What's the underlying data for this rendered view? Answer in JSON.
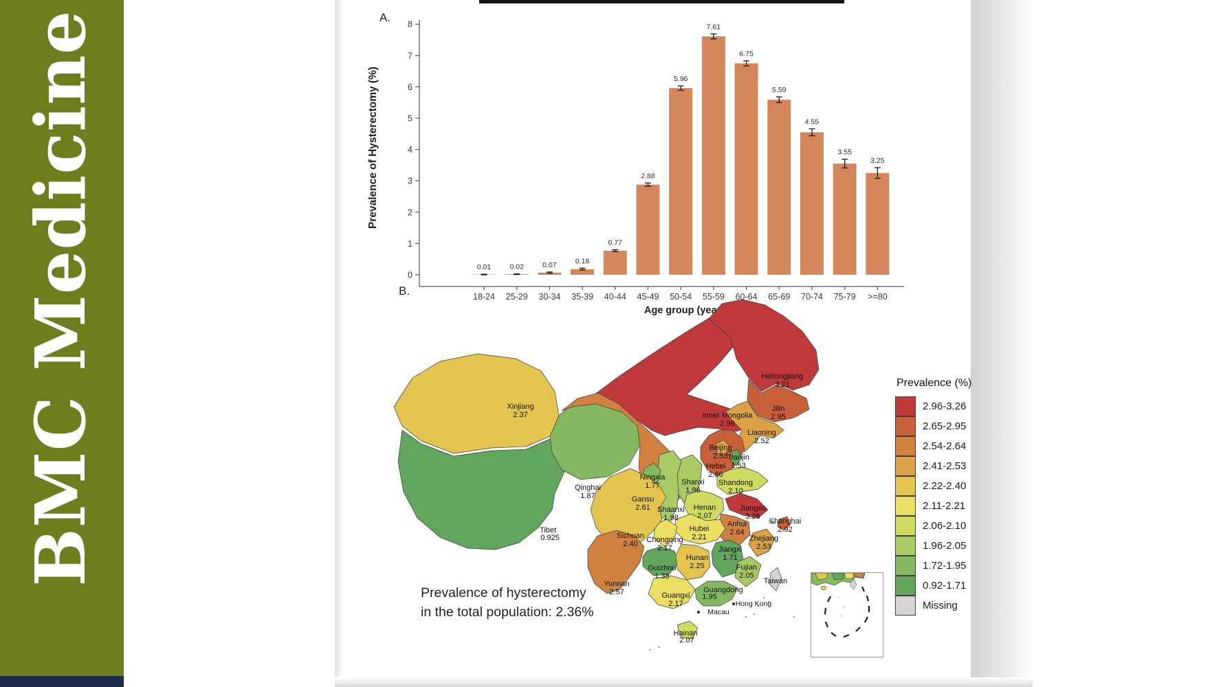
{
  "sidebar": {
    "journal_title": "BMC Medicine",
    "bg_color": "#6F7D1F",
    "footer_color": "#1C2B4A"
  },
  "figure": {
    "panelA": {
      "label": "A.",
      "chart_data": {
        "type": "bar",
        "categories": [
          "18-24",
          "25-29",
          "30-34",
          "35-39",
          "40-44",
          "45-49",
          "50-54",
          "55-59",
          "60-64",
          "65-69",
          "70-74",
          "75-79",
          ">=80"
        ],
        "values": [
          0.01,
          0.02,
          0.07,
          0.18,
          0.77,
          2.88,
          5.96,
          7.61,
          6.75,
          5.59,
          4.55,
          3.55,
          3.25
        ],
        "value_labels": [
          "0.01",
          "0.02",
          "0.07",
          "0.18",
          "0.77",
          "2.88",
          "5.96",
          "7.61",
          "6.75",
          "5.59",
          "4.55",
          "3.55",
          "3.25"
        ],
        "errors": [
          0.01,
          0.01,
          0.02,
          0.03,
          0.03,
          0.05,
          0.07,
          0.08,
          0.08,
          0.09,
          0.11,
          0.14,
          0.17
        ],
        "title": "",
        "xlabel": "Age group (year)",
        "ylabel": "Prevalence of Hysterectomy (%)",
        "ylim": [
          0,
          8
        ],
        "yticks": [
          0,
          1,
          2,
          3,
          4,
          5,
          6,
          7,
          8
        ],
        "grid": false,
        "error_bars": true,
        "bar_color": "#D5875C",
        "error_color": "#1A1A1A"
      }
    },
    "panelB": {
      "label": "B.",
      "annotation": {
        "line1": "Prevalence of hysterectomy",
        "line2": "in the total population: 2.36%"
      },
      "legend": {
        "title": "Prevalence (%)",
        "items": [
          {
            "label": "2.96-3.26",
            "color": "#C03A3C"
          },
          {
            "label": "2.65-2.95",
            "color": "#C75F38"
          },
          {
            "label": "2.54-2.64",
            "color": "#D0803F"
          },
          {
            "label": "2.41-2.53",
            "color": "#DCA246"
          },
          {
            "label": "2.22-2.40",
            "color": "#E3C44F"
          },
          {
            "label": "2.11-2.21",
            "color": "#EADF63"
          },
          {
            "label": "2.06-2.10",
            "color": "#CEDB60"
          },
          {
            "label": "1.96-2.05",
            "color": "#A8C963"
          },
          {
            "label": "1.72-1.95",
            "color": "#84B961"
          },
          {
            "label": "0.92-1.71",
            "color": "#62A55C"
          },
          {
            "label": "Missing",
            "color": "#D4D4D4"
          }
        ]
      },
      "map_data": {
        "type": "choropleth",
        "region": "China provinces",
        "provinces": [
          {
            "id": "heilongjiang",
            "name": "Heilongjiang",
            "value": "3.21"
          },
          {
            "id": "jilin",
            "name": "Jilin",
            "value": "2.95"
          },
          {
            "id": "innermongolia",
            "name": "Inner Mongolia",
            "value": "2.98"
          },
          {
            "id": "liaoning",
            "name": "Liaoning",
            "value": "2.52"
          },
          {
            "id": "beijing",
            "name": "Beijing",
            "value": "2.53"
          },
          {
            "id": "tianjin",
            "name": "Tianjin",
            "value": "1.53"
          },
          {
            "id": "hebei",
            "name": "Hebei",
            "value": "2.66"
          },
          {
            "id": "shanxi",
            "name": "Shanxi",
            "value": "1.96"
          },
          {
            "id": "shandong",
            "name": "Shandong",
            "value": "2.10"
          },
          {
            "id": "xinjiang",
            "name": "Xinjiang",
            "value": "2.37"
          },
          {
            "id": "ningxia",
            "name": "Ningxia",
            "value": "1.77"
          },
          {
            "id": "qinghai",
            "name": "Qinghai",
            "value": "1.87"
          },
          {
            "id": "gansu",
            "name": "Gansu",
            "value": "2.61"
          },
          {
            "id": "shaanxi",
            "name": "Shaanxi",
            "value": "1.98"
          },
          {
            "id": "henan",
            "name": "Henan",
            "value": "2.07"
          },
          {
            "id": "jiangsu",
            "name": "Jiangsu",
            "value": "3.26"
          },
          {
            "id": "shanghai",
            "name": "Shanghai",
            "value": "2.92"
          },
          {
            "id": "anhui",
            "name": "Anhui",
            "value": "2.64"
          },
          {
            "id": "hubei",
            "name": "Hubei",
            "value": "2.21"
          },
          {
            "id": "zhejiang",
            "name": "Zhejiang",
            "value": "2.53"
          },
          {
            "id": "tibet",
            "name": "Tibet",
            "value": "0.925"
          },
          {
            "id": "sichuan",
            "name": "Sichuan",
            "value": "2.40"
          },
          {
            "id": "chongqing",
            "name": "Chongqing",
            "value": "2.17"
          },
          {
            "id": "hunan",
            "name": "Hunan",
            "value": "2.25"
          },
          {
            "id": "jiangxi",
            "name": "Jiangxi",
            "value": "1.71"
          },
          {
            "id": "guizhou",
            "name": "Guizhou",
            "value": "1.38"
          },
          {
            "id": "fujian",
            "name": "Fujian",
            "value": "2.05"
          },
          {
            "id": "yunnan",
            "name": "Yunnan",
            "value": "2.57"
          },
          {
            "id": "guangxi",
            "name": "Guangxi",
            "value": "2.17"
          },
          {
            "id": "guangdong",
            "name": "Guangdong",
            "value": "1.95"
          },
          {
            "id": "hainan",
            "name": "Hainan",
            "value": "2.07"
          },
          {
            "id": "taiwan",
            "name": "Taiwan",
            "value": null
          }
        ],
        "city_labels": [
          {
            "id": "hongkong",
            "name": "Hong Kong"
          },
          {
            "id": "macau",
            "name": "Macau"
          }
        ]
      }
    }
  }
}
